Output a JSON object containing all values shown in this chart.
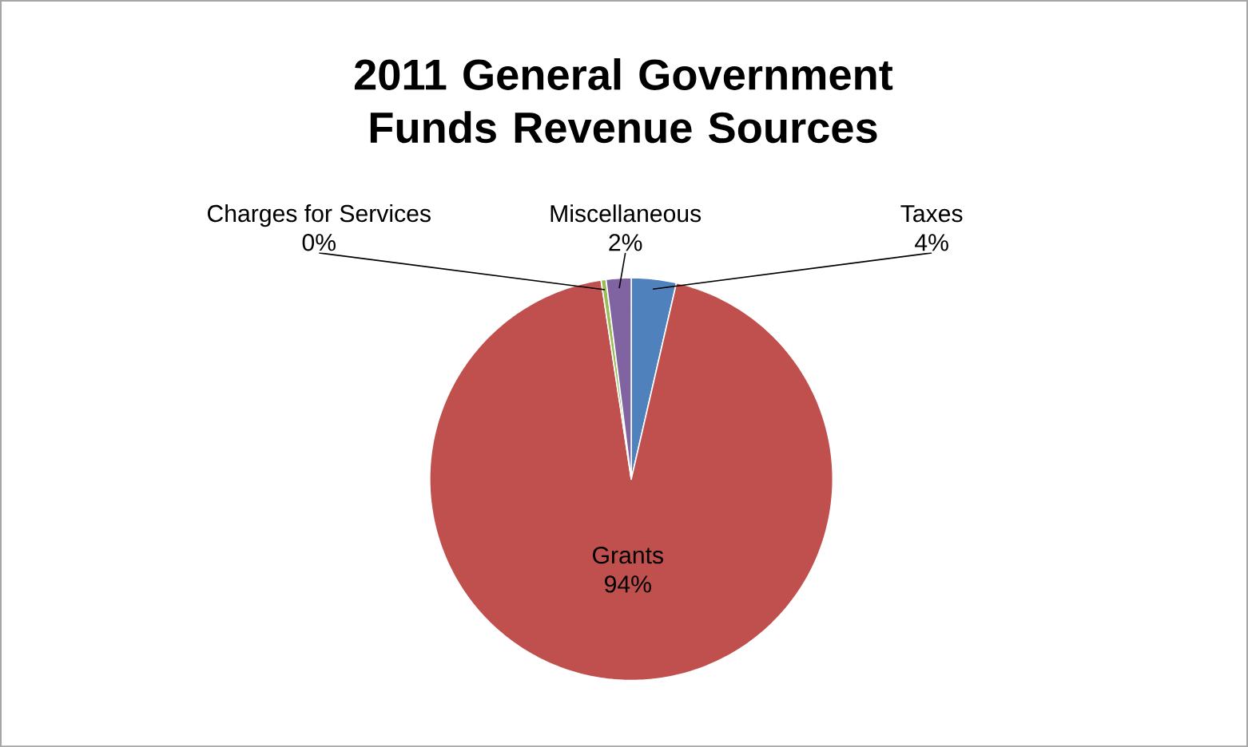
{
  "chart_data": {
    "type": "pie",
    "title": "2011 General Government Funds Revenue Sources",
    "categories": [
      "Taxes",
      "Grants",
      "Charges for Services",
      "Miscellaneous"
    ],
    "values": [
      3.6,
      94,
      0.4,
      2
    ],
    "value_labels": [
      "4%",
      "94%",
      "0%",
      "2%"
    ],
    "colors": [
      "#4f81bd",
      "#c0504d",
      "#9bbb59",
      "#8064a2"
    ]
  }
}
